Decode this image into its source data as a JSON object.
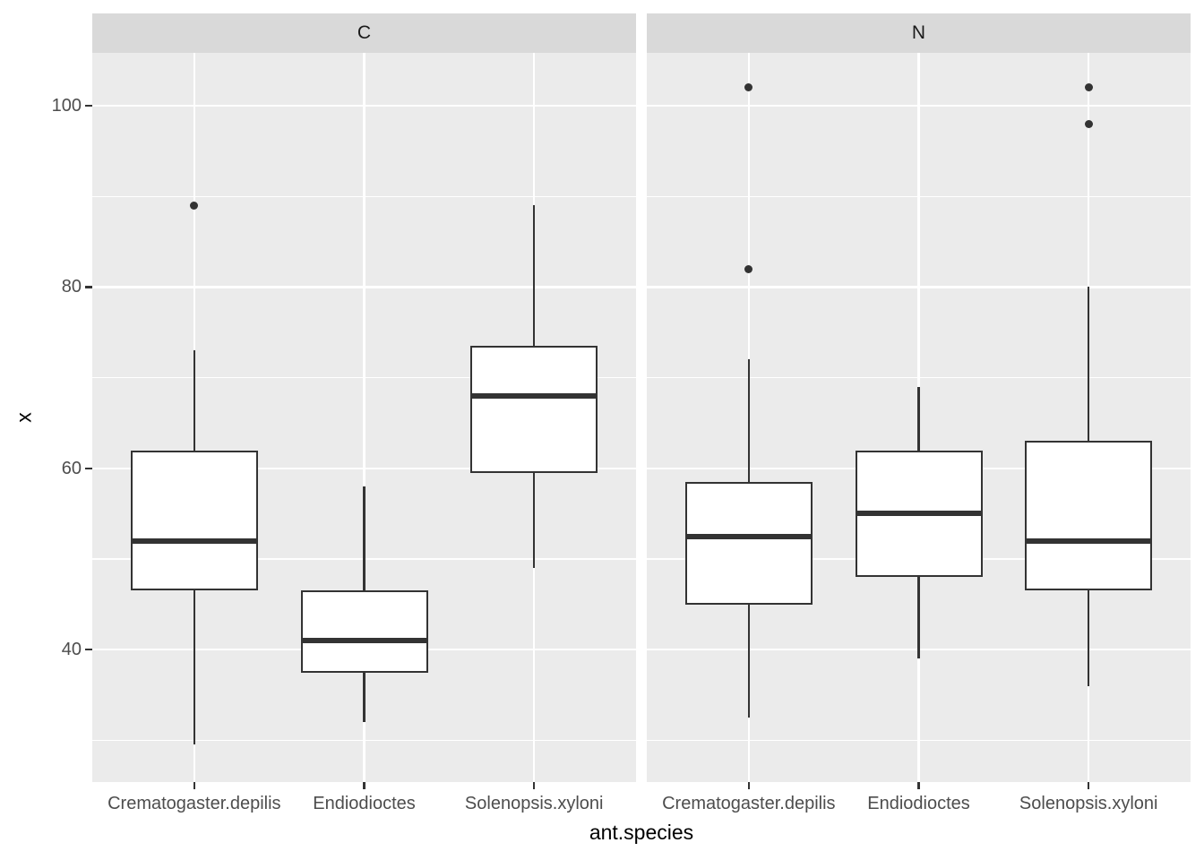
{
  "chart_data": {
    "type": "boxplot",
    "title": "",
    "facet_labels": [
      "C",
      "N"
    ],
    "x": {
      "title": "ant.species",
      "categories": [
        "Crematogaster.depilis",
        "Endiodioctes",
        "Solenopsis.xyloni"
      ]
    },
    "y": {
      "title": "x",
      "ticks": [
        40,
        60,
        80,
        100
      ],
      "minor_gridlines": [
        30,
        50,
        70,
        90
      ],
      "range": [
        25.4,
        105.8
      ]
    },
    "series": [
      {
        "facet": "C",
        "boxes": [
          {
            "category": "Crematogaster.depilis",
            "whisker_low": 29.5,
            "q1": 46.5,
            "median": 52,
            "q3": 62,
            "whisker_high": 73,
            "outliers": [
              89
            ]
          },
          {
            "category": "Endiodioctes",
            "whisker_low": 32,
            "q1": 37.5,
            "median": 41,
            "q3": 46.5,
            "whisker_high": 58,
            "outliers": []
          },
          {
            "category": "Solenopsis.xyloni",
            "whisker_low": 49,
            "q1": 59.5,
            "median": 68,
            "q3": 73.5,
            "whisker_high": 89,
            "outliers": []
          }
        ]
      },
      {
        "facet": "N",
        "boxes": [
          {
            "category": "Crematogaster.depilis",
            "whisker_low": 32.5,
            "q1": 45,
            "median": 52.5,
            "q3": 58.5,
            "whisker_high": 72,
            "outliers": [
              102,
              82
            ]
          },
          {
            "category": "Endiodioctes",
            "whisker_low": 39,
            "q1": 48,
            "median": 55,
            "q3": 62,
            "whisker_high": 69,
            "outliers": []
          },
          {
            "category": "Solenopsis.xyloni",
            "whisker_low": 36,
            "q1": 46.5,
            "median": 52,
            "q3": 63,
            "whisker_high": 80,
            "outliers": [
              102,
              98
            ]
          }
        ]
      }
    ],
    "legend_position": "none",
    "grid": true
  },
  "theme": {
    "figure_background": "#FFFFFF",
    "panel_background": "#EBEBEB",
    "strip_background": "#D9D9D9",
    "gridline_color": "#FFFFFF",
    "box_stroke": "#333333",
    "box_fill": "#FFFFFF",
    "tick_mark_color": "#333333",
    "axis_text_color": "#4D4D4D",
    "strip_text_color": "#1A1A1A",
    "axis_title_color": "#000000"
  }
}
